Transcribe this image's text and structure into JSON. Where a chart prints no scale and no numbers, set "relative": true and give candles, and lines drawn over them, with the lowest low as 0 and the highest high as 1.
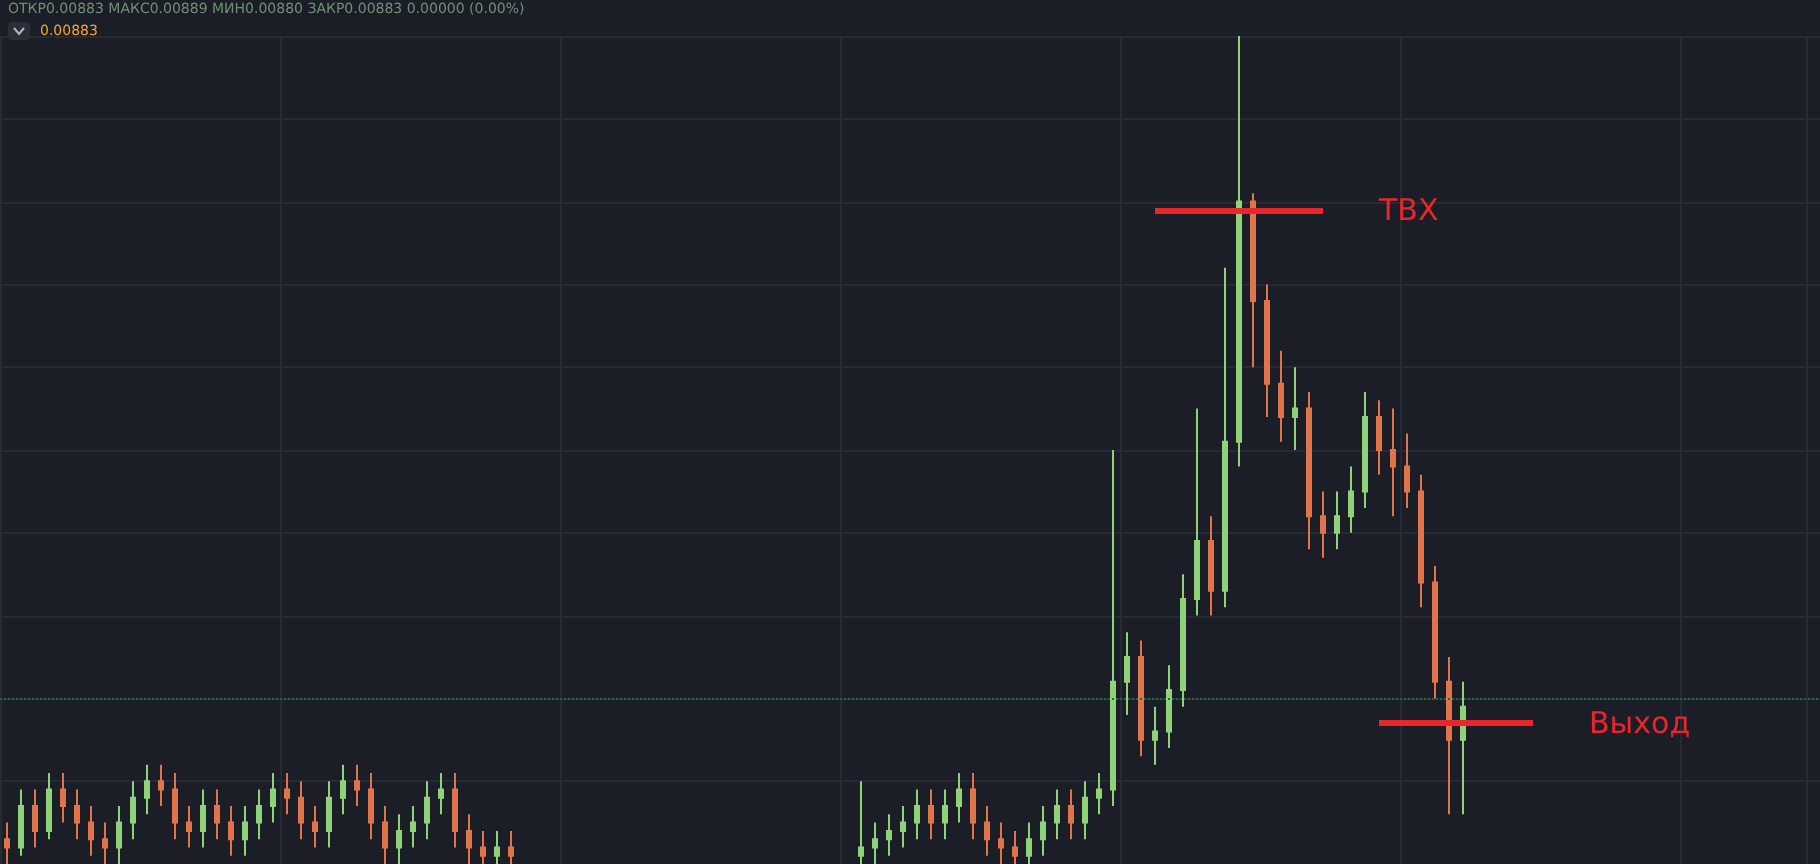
{
  "chart_data": {
    "type": "candlestick",
    "relative": true,
    "grid": true,
    "categories": [
      null,
      null,
      null,
      null,
      null,
      null,
      null,
      null,
      null,
      null,
      null,
      null,
      null,
      null,
      null,
      null,
      null,
      null,
      null,
      null,
      null,
      null,
      null,
      null,
      null,
      null,
      null,
      null,
      null,
      null,
      null,
      null,
      null,
      null,
      null,
      null,
      null,
      null,
      null,
      null,
      null,
      null,
      null,
      null,
      null,
      null,
      null,
      null,
      null,
      null,
      null,
      null,
      null,
      null,
      null,
      null,
      null,
      null,
      null,
      null,
      null,
      null,
      null,
      null,
      null,
      null,
      null,
      null,
      null,
      null,
      null,
      null,
      null,
      null,
      null,
      null,
      null,
      null,
      null,
      null,
      null,
      null,
      null,
      null,
      null,
      null,
      null,
      null,
      null,
      null,
      null,
      null,
      null,
      null,
      null,
      null,
      null,
      null,
      null,
      null,
      null,
      null,
      null,
      null,
      null,
      null,
      null,
      null,
      null,
      null,
      null,
      null,
      null,
      null,
      null,
      null,
      null,
      null,
      null,
      null,
      null,
      null,
      null,
      null,
      null,
      null,
      null,
      null,
      null,
      null
    ],
    "ohlc": [
      [
        0.03,
        0.05,
        0.0,
        0.02
      ],
      [
        0.02,
        0.09,
        0.01,
        0.07
      ],
      [
        0.07,
        0.09,
        0.02,
        0.04
      ],
      [
        0.04,
        0.11,
        0.03,
        0.09
      ],
      [
        0.09,
        0.11,
        0.05,
        0.07
      ],
      [
        0.07,
        0.09,
        0.03,
        0.05
      ],
      [
        0.05,
        0.07,
        0.01,
        0.03
      ],
      [
        0.03,
        0.05,
        0.0,
        0.02
      ],
      [
        0.02,
        0.07,
        0.0,
        0.05
      ],
      [
        0.05,
        0.1,
        0.03,
        0.08
      ],
      [
        0.08,
        0.12,
        0.06,
        0.1
      ],
      [
        0.1,
        0.12,
        0.07,
        0.09
      ],
      [
        0.09,
        0.11,
        0.03,
        0.05
      ],
      [
        0.05,
        0.07,
        0.02,
        0.04
      ],
      [
        0.04,
        0.09,
        0.02,
        0.07
      ],
      [
        0.07,
        0.09,
        0.03,
        0.05
      ],
      [
        0.05,
        0.07,
        0.01,
        0.03
      ],
      [
        0.03,
        0.07,
        0.01,
        0.05
      ],
      [
        0.05,
        0.09,
        0.03,
        0.07
      ],
      [
        0.07,
        0.11,
        0.05,
        0.09
      ],
      [
        0.09,
        0.11,
        0.06,
        0.08
      ],
      [
        0.08,
        0.1,
        0.03,
        0.05
      ],
      [
        0.05,
        0.07,
        0.02,
        0.04
      ],
      [
        0.04,
        0.1,
        0.02,
        0.08
      ],
      [
        0.08,
        0.12,
        0.06,
        0.1
      ],
      [
        0.1,
        0.12,
        0.07,
        0.09
      ],
      [
        0.09,
        0.11,
        0.03,
        0.05
      ],
      [
        0.05,
        0.07,
        0.0,
        0.02
      ],
      [
        0.02,
        0.06,
        0.0,
        0.04
      ],
      [
        0.04,
        0.07,
        0.02,
        0.05
      ],
      [
        0.05,
        0.1,
        0.03,
        0.08
      ],
      [
        0.08,
        0.11,
        0.06,
        0.09
      ],
      [
        0.09,
        0.11,
        0.02,
        0.04
      ],
      [
        0.04,
        0.06,
        0.0,
        0.02
      ],
      [
        0.02,
        0.04,
        0.0,
        0.01
      ],
      [
        0.01,
        0.04,
        0.0,
        0.02
      ],
      [
        0.02,
        0.04,
        0.0,
        0.01
      ],
      null,
      null,
      null,
      null,
      null,
      null,
      null,
      null,
      null,
      null,
      null,
      null,
      null,
      null,
      null,
      null,
      null,
      null,
      null,
      null,
      null,
      null,
      null,
      null,
      [
        0.01,
        0.1,
        0.0,
        0.02
      ],
      [
        0.02,
        0.05,
        0.0,
        0.03
      ],
      [
        0.03,
        0.06,
        0.01,
        0.04
      ],
      [
        0.04,
        0.07,
        0.02,
        0.05
      ],
      [
        0.05,
        0.09,
        0.03,
        0.07
      ],
      [
        0.07,
        0.09,
        0.03,
        0.05
      ],
      [
        0.05,
        0.09,
        0.03,
        0.07
      ],
      [
        0.07,
        0.11,
        0.05,
        0.09
      ],
      [
        0.09,
        0.11,
        0.03,
        0.05
      ],
      [
        0.05,
        0.07,
        0.01,
        0.03
      ],
      [
        0.03,
        0.05,
        0.0,
        0.02
      ],
      [
        0.02,
        0.04,
        0.0,
        0.01
      ],
      [
        0.01,
        0.05,
        0.0,
        0.03
      ],
      [
        0.03,
        0.07,
        0.01,
        0.05
      ],
      [
        0.05,
        0.09,
        0.03,
        0.07
      ],
      [
        0.07,
        0.09,
        0.03,
        0.05
      ],
      [
        0.05,
        0.1,
        0.03,
        0.08
      ],
      [
        0.08,
        0.11,
        0.06,
        0.09
      ],
      [
        0.09,
        0.5,
        0.07,
        0.22
      ],
      [
        0.22,
        0.28,
        0.18,
        0.25
      ],
      [
        0.25,
        0.27,
        0.13,
        0.15
      ],
      [
        0.15,
        0.19,
        0.12,
        0.16
      ],
      [
        0.16,
        0.24,
        0.14,
        0.21
      ],
      [
        0.21,
        0.35,
        0.19,
        0.32
      ],
      [
        0.32,
        0.55,
        0.3,
        0.39
      ],
      [
        0.39,
        0.42,
        0.3,
        0.33
      ],
      [
        0.33,
        0.72,
        0.31,
        0.51
      ],
      [
        0.51,
        1.0,
        0.48,
        0.8
      ],
      [
        0.8,
        0.81,
        0.6,
        0.68
      ],
      [
        0.68,
        0.7,
        0.54,
        0.58
      ],
      [
        0.58,
        0.62,
        0.51,
        0.54
      ],
      [
        0.54,
        0.6,
        0.5,
        0.55
      ],
      [
        0.55,
        0.57,
        0.38,
        0.42
      ],
      [
        0.42,
        0.45,
        0.37,
        0.4
      ],
      [
        0.4,
        0.45,
        0.38,
        0.42
      ],
      [
        0.42,
        0.48,
        0.4,
        0.45
      ],
      [
        0.45,
        0.57,
        0.43,
        0.54
      ],
      [
        0.54,
        0.56,
        0.47,
        0.5
      ],
      [
        0.5,
        0.55,
        0.42,
        0.48
      ],
      [
        0.48,
        0.52,
        0.43,
        0.45
      ],
      [
        0.45,
        0.47,
        0.31,
        0.34
      ],
      [
        0.34,
        0.36,
        0.2,
        0.22
      ],
      [
        0.22,
        0.25,
        0.06,
        0.15
      ],
      [
        0.15,
        0.22,
        0.06,
        0.19
      ],
      null,
      null,
      null,
      null,
      null,
      null,
      null,
      null,
      null,
      null,
      null,
      null,
      null,
      null,
      null,
      null,
      null,
      null,
      null,
      null,
      null,
      null,
      null,
      null,
      null
    ],
    "ref_lines": [
      {
        "axis": "y",
        "value": 0.2,
        "color": "#1f6b3c",
        "line_style": "dotted"
      },
      {
        "axis": "y",
        "value": 0.79,
        "label": "ТВХ",
        "color": "#e8262b",
        "line_style": "solid"
      },
      {
        "axis": "y",
        "value": 0.17,
        "label": "Выход",
        "color": "#e8262b",
        "line_style": "solid"
      }
    ],
    "annotations": [
      "ОТКР0.00883 МАКС0.00889 МИН0.00880 ЗАКР0.00883 0.00000 (0.00%)",
      "0.00883"
    ]
  }
}
